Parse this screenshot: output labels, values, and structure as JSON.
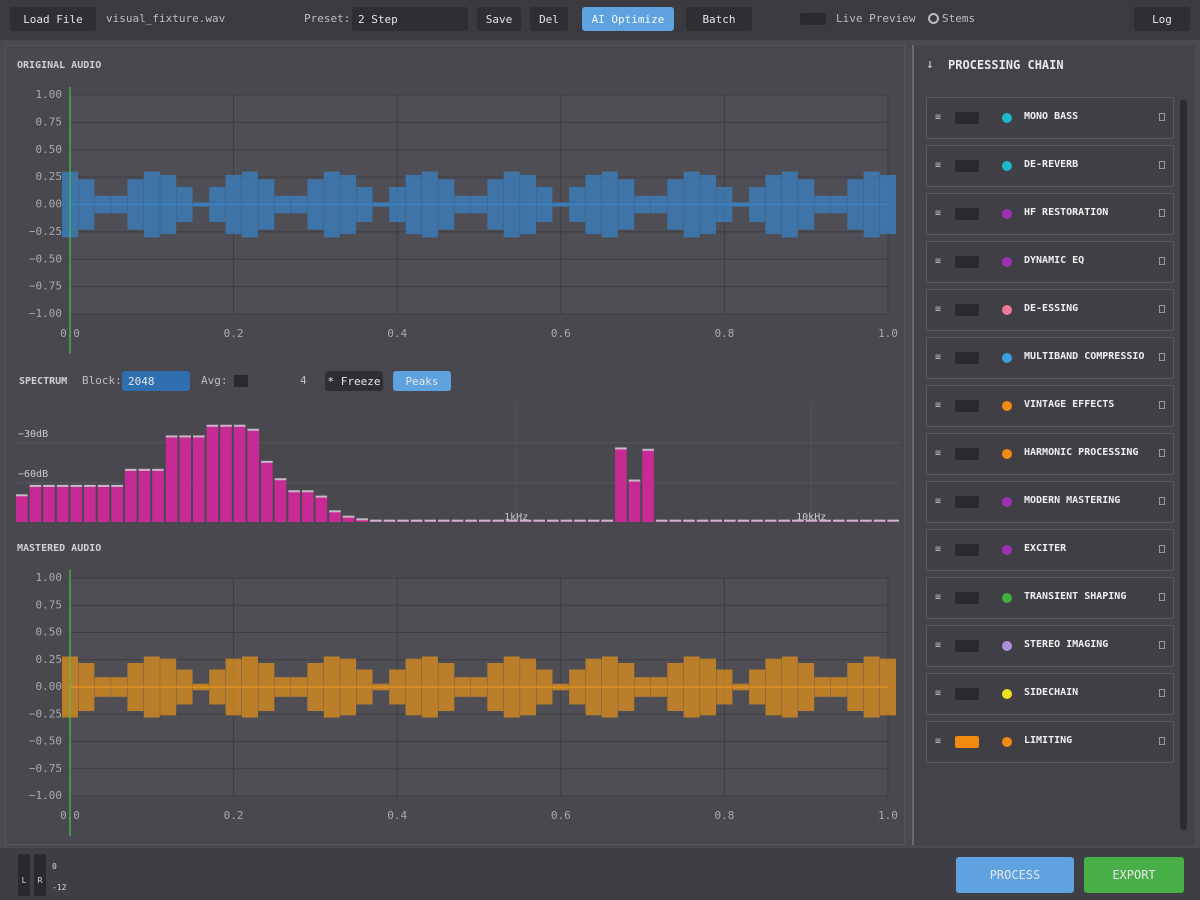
{
  "toolbar": {
    "load": "Load File",
    "file": "visual_fixture.wav",
    "preset_label": "Preset:",
    "preset": "2 Step",
    "save": "Save",
    "del": "Del",
    "ai": "AI Optimize",
    "batch": "Batch",
    "live": "Live Preview",
    "stems": "Stems",
    "log": "Log"
  },
  "spectrum_controls": {
    "block_label": "Block:",
    "block": "2048",
    "avg_label": "Avg:",
    "avg": "4",
    "freeze": "* Freeze",
    "peaks": "Peaks"
  },
  "chart_data": [
    {
      "type": "waveform",
      "title": "ORIGINAL AUDIO",
      "color": "#3a82c4",
      "xlim": [
        0,
        1
      ],
      "ylim": [
        -1,
        1
      ],
      "xticks": [
        {
          "value": 0,
          "label": "0.0"
        },
        0.2,
        0.4,
        0.6,
        0.8,
        {
          "value": 1,
          "label": "1.0"
        }
      ],
      "yticks": [
        {
          "value": -1,
          "label": "−1.00"
        },
        {
          "value": -0.75,
          "label": "−0.75"
        },
        {
          "value": -0.5,
          "label": "−0.50"
        },
        {
          "value": -0.25,
          "label": "−0.25"
        },
        {
          "value": 0,
          "label": "0.00"
        },
        {
          "value": 0.25,
          "label": "0.25"
        },
        {
          "value": 0.5,
          "label": "0.50"
        },
        {
          "value": 0.75,
          "label": "0.75"
        },
        {
          "value": 1,
          "label": "1.00"
        }
      ],
      "x": [
        0,
        0.02,
        0.04,
        0.06,
        0.08,
        0.1,
        0.12,
        0.14,
        0.16,
        0.18,
        0.2,
        0.22,
        0.24,
        0.26,
        0.28,
        0.3,
        0.32,
        0.34,
        0.36,
        0.38,
        0.4,
        0.42,
        0.44,
        0.46,
        0.48,
        0.5,
        0.52,
        0.54,
        0.56,
        0.58,
        0.6,
        0.62,
        0.64,
        0.66,
        0.68,
        0.7,
        0.72,
        0.74,
        0.76,
        0.78,
        0.8,
        0.82,
        0.84,
        0.86,
        0.88,
        0.9,
        0.92,
        0.94,
        0.96,
        0.98,
        1
      ],
      "values": [
        0.3,
        0.23,
        0.08,
        0.08,
        0.23,
        0.3,
        0.27,
        0.16,
        0.02,
        0.16,
        0.27,
        0.3,
        0.23,
        0.08,
        0.08,
        0.23,
        0.3,
        0.27,
        0.16,
        0.02,
        0.16,
        0.27,
        0.3,
        0.23,
        0.08,
        0.08,
        0.23,
        0.3,
        0.27,
        0.16,
        0.02,
        0.16,
        0.27,
        0.3,
        0.23,
        0.08,
        0.08,
        0.23,
        0.3,
        0.27,
        0.16,
        0.02,
        0.16,
        0.27,
        0.3,
        0.23,
        0.08,
        0.08,
        0.23,
        0.3,
        0.27
      ]
    },
    {
      "type": "spectrum",
      "title": "SPECTRUM",
      "color": "#c72a94",
      "log_x": true,
      "xlim": [
        20,
        20000
      ],
      "ylim": [
        -96,
        -7
      ],
      "xticks": [
        {
          "value": 1000,
          "label": "1kHz"
        },
        {
          "value": 10000,
          "label": "10kHz"
        }
      ],
      "yticks": [
        {
          "value": -30,
          "label": "−30dB"
        },
        {
          "value": -60,
          "label": "−60dB"
        }
      ],
      "values": [
        -76,
        -69,
        -69,
        -69,
        -69,
        -69,
        -69,
        -69,
        -57,
        -57,
        -57,
        -32,
        -32,
        -32,
        -24,
        -24,
        -24,
        -27,
        -51,
        -64,
        -73,
        -73,
        -77,
        -88,
        -92,
        -94,
        -95,
        -95,
        -95,
        -95,
        -95,
        -95,
        -95,
        -95,
        -95,
        -95,
        -95,
        -95,
        -95,
        -95,
        -95,
        -95,
        -95,
        -95,
        -41,
        -65,
        -42,
        -95,
        -95,
        -95,
        -95,
        -95,
        -95,
        -95,
        -95,
        -95,
        -95,
        -95,
        -95,
        -95,
        -95,
        -95,
        -95,
        -95,
        -95
      ]
    },
    {
      "type": "waveform",
      "title": "MASTERED AUDIO",
      "color": "#e0901e",
      "xlim": [
        0,
        1
      ],
      "ylim": [
        -1,
        1
      ],
      "xticks": [
        {
          "value": 0,
          "label": "0.0"
        },
        0.2,
        0.4,
        0.6,
        0.8,
        {
          "value": 1,
          "label": "1.0"
        }
      ],
      "yticks": [
        {
          "value": -1,
          "label": "−1.00"
        },
        {
          "value": -0.75,
          "label": "−0.75"
        },
        {
          "value": -0.5,
          "label": "−0.50"
        },
        {
          "value": -0.25,
          "label": "−0.25"
        },
        {
          "value": 0,
          "label": "0.00"
        },
        {
          "value": 0.25,
          "label": "0.25"
        },
        {
          "value": 0.5,
          "label": "0.50"
        },
        {
          "value": 0.75,
          "label": "0.75"
        },
        {
          "value": 1,
          "label": "1.00"
        }
      ],
      "x": [
        0,
        0.02,
        0.04,
        0.06,
        0.08,
        0.1,
        0.12,
        0.14,
        0.16,
        0.18,
        0.2,
        0.22,
        0.24,
        0.26,
        0.28,
        0.3,
        0.32,
        0.34,
        0.36,
        0.38,
        0.4,
        0.42,
        0.44,
        0.46,
        0.48,
        0.5,
        0.52,
        0.54,
        0.56,
        0.58,
        0.6,
        0.62,
        0.64,
        0.66,
        0.68,
        0.7,
        0.72,
        0.74,
        0.76,
        0.78,
        0.8,
        0.82,
        0.84,
        0.86,
        0.88,
        0.9,
        0.92,
        0.94,
        0.96,
        0.98,
        1
      ],
      "values": [
        0.28,
        0.22,
        0.09,
        0.09,
        0.22,
        0.28,
        0.26,
        0.16,
        0.03,
        0.16,
        0.26,
        0.28,
        0.22,
        0.09,
        0.09,
        0.22,
        0.28,
        0.26,
        0.16,
        0.03,
        0.16,
        0.26,
        0.28,
        0.22,
        0.09,
        0.09,
        0.22,
        0.28,
        0.26,
        0.16,
        0.03,
        0.16,
        0.26,
        0.28,
        0.22,
        0.09,
        0.09,
        0.22,
        0.28,
        0.26,
        0.16,
        0.03,
        0.16,
        0.26,
        0.28,
        0.22,
        0.09,
        0.09,
        0.22,
        0.28,
        0.26
      ]
    }
  ],
  "chain": {
    "title": "PROCESSING CHAIN",
    "items": [
      {
        "name": "MONO BASS",
        "color": "#1fb8c8",
        "enabled": false
      },
      {
        "name": "DE-REVERB",
        "color": "#1fb8c8",
        "enabled": false
      },
      {
        "name": "HF RESTORATION",
        "color": "#a030b0",
        "enabled": false
      },
      {
        "name": "DYNAMIC EQ",
        "color": "#a030b0",
        "enabled": false
      },
      {
        "name": "DE-ESSING",
        "color": "#f07898",
        "enabled": false
      },
      {
        "name": "MULTIBAND COMPRESSIO",
        "color": "#3aa0e0",
        "enabled": false
      },
      {
        "name": "VINTAGE EFFECTS",
        "color": "#f08a10",
        "enabled": false
      },
      {
        "name": "HARMONIC PROCESSING",
        "color": "#f08a10",
        "enabled": false
      },
      {
        "name": "MODERN MASTERING",
        "color": "#a030b0",
        "enabled": false
      },
      {
        "name": "EXCITER",
        "color": "#a030b0",
        "enabled": false
      },
      {
        "name": "TRANSIENT SHAPING",
        "color": "#40b040",
        "enabled": false
      },
      {
        "name": "STEREO IMAGING",
        "color": "#b090d8",
        "enabled": false
      },
      {
        "name": "SIDECHAIN",
        "color": "#f0e020",
        "enabled": false
      },
      {
        "name": "LIMITING",
        "color": "#f08a10",
        "enabled": true
      }
    ]
  },
  "meter": {
    "l": "L",
    "r": "R",
    "top": "0",
    "bottom": "-12"
  },
  "actions": {
    "process": "PROCESS",
    "export": "EXPORT"
  }
}
